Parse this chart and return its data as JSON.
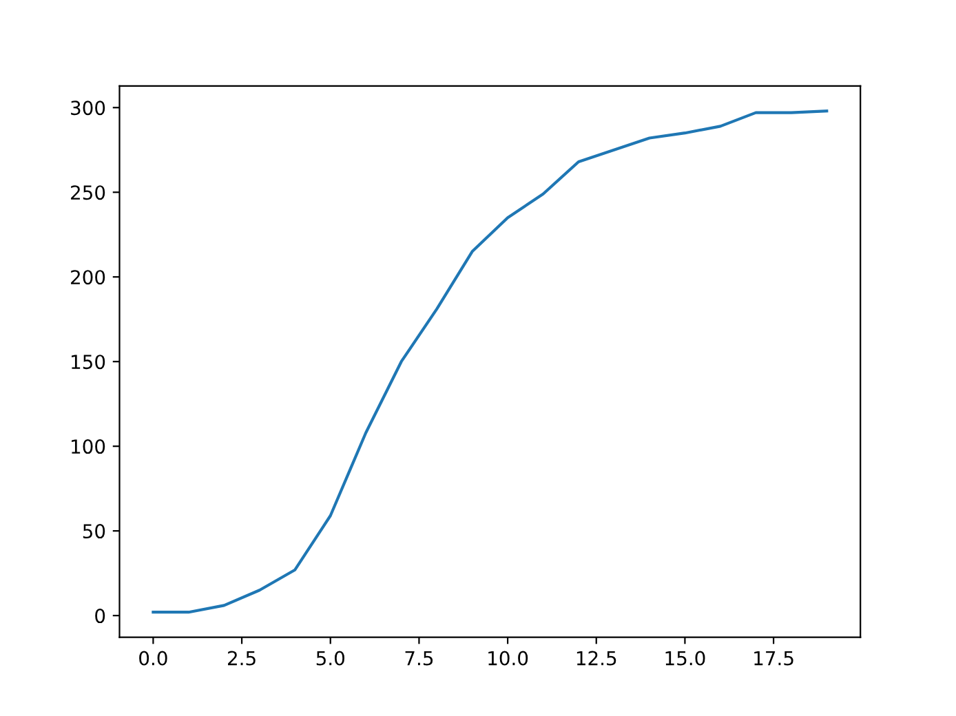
{
  "chart_data": {
    "type": "line",
    "x": [
      0,
      1,
      2,
      3,
      4,
      5,
      6,
      7,
      8,
      9,
      10,
      11,
      12,
      13,
      14,
      15,
      16,
      17,
      18,
      19
    ],
    "series": [
      {
        "color": "#1f77b4",
        "values": [
          2,
          2,
          6,
          15,
          27,
          59,
          108,
          150,
          181,
          215,
          235,
          249,
          268,
          275,
          282,
          285,
          289,
          297,
          297,
          298
        ]
      }
    ],
    "xlim": [
      -0.95,
      19.95
    ],
    "xticks": [
      {
        "value": 0,
        "label": "0.0"
      },
      {
        "value": 2.5,
        "label": "2.5"
      },
      {
        "value": 5,
        "label": "5.0"
      },
      {
        "value": 7.5,
        "label": "7.5"
      },
      {
        "value": 10,
        "label": "10.0"
      },
      {
        "value": 12.5,
        "label": "12.5"
      },
      {
        "value": 15,
        "label": "15.0"
      },
      {
        "value": 17.5,
        "label": "17.5"
      }
    ],
    "ylim": [
      -12.8,
      312.8
    ],
    "yticks": [
      0,
      50,
      100,
      150,
      200,
      250,
      300
    ],
    "grid": false,
    "legend": false
  }
}
